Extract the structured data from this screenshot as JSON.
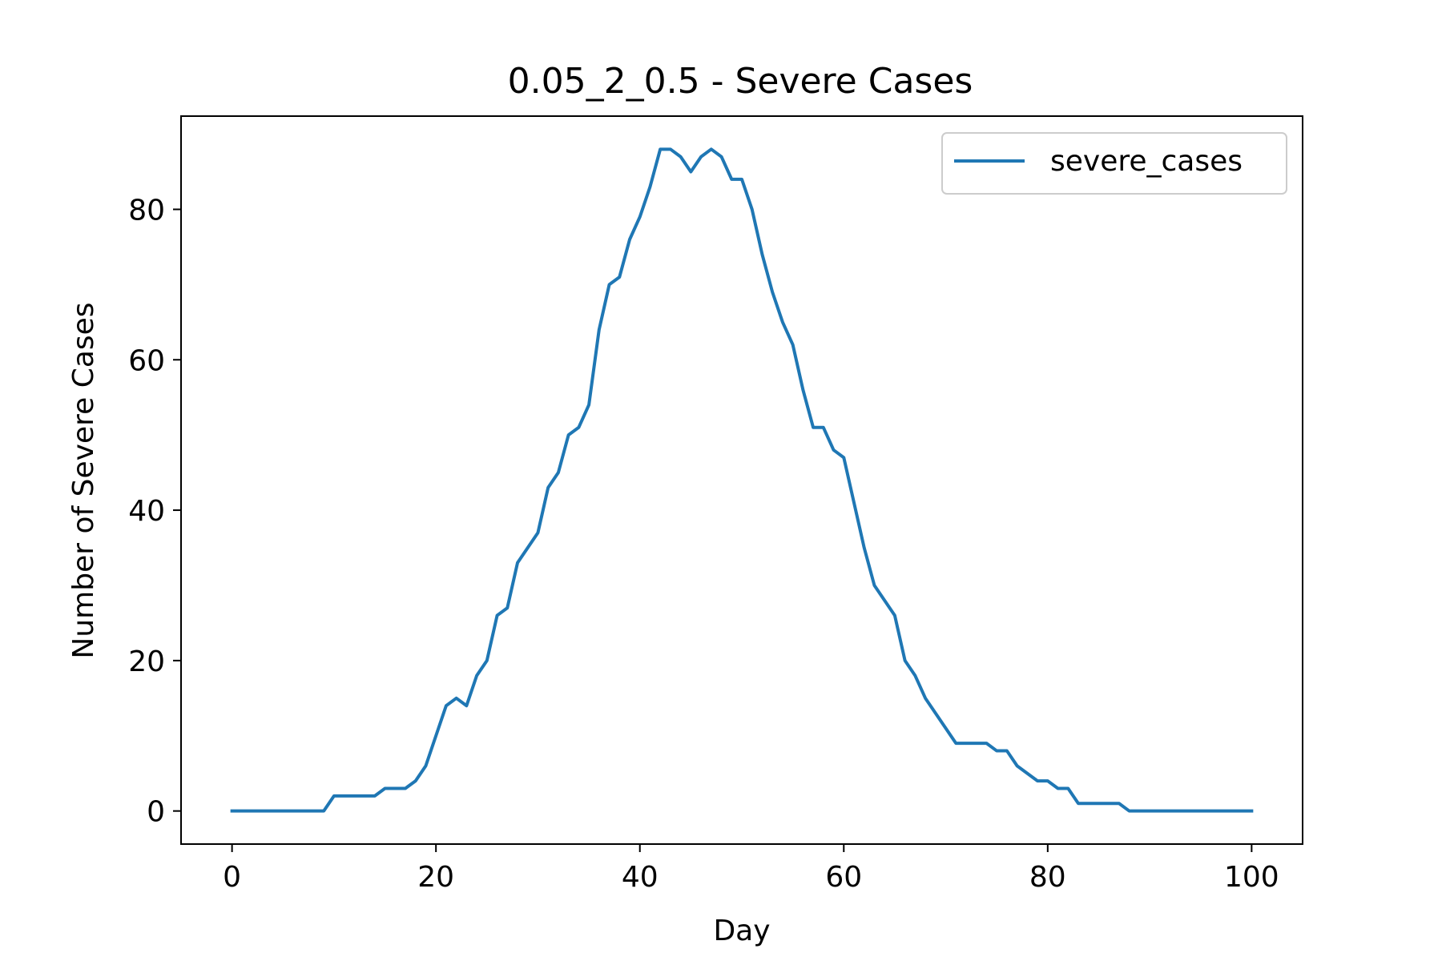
{
  "chart_data": {
    "type": "line",
    "title": "0.05_2_0.5 - Severe Cases",
    "xlabel": "Day",
    "ylabel": "Number of Severe Cases",
    "xlim": [
      -5,
      105
    ],
    "ylim": [
      -4.4,
      92.4
    ],
    "xticks": [
      0,
      20,
      40,
      60,
      80,
      100
    ],
    "yticks": [
      0,
      20,
      40,
      60,
      80
    ],
    "grid": false,
    "legend": {
      "position": "top-right",
      "entries": [
        "severe_cases"
      ]
    },
    "colors": {
      "severe_cases": "#1f77b4"
    },
    "series": [
      {
        "name": "severe_cases",
        "x": [
          0,
          1,
          2,
          3,
          4,
          5,
          6,
          7,
          8,
          9,
          10,
          11,
          12,
          13,
          14,
          15,
          16,
          17,
          18,
          19,
          20,
          21,
          22,
          23,
          24,
          25,
          26,
          27,
          28,
          29,
          30,
          31,
          32,
          33,
          34,
          35,
          36,
          37,
          38,
          39,
          40,
          41,
          42,
          43,
          44,
          45,
          46,
          47,
          48,
          49,
          50,
          51,
          52,
          53,
          54,
          55,
          56,
          57,
          58,
          59,
          60,
          61,
          62,
          63,
          64,
          65,
          66,
          67,
          68,
          69,
          70,
          71,
          72,
          73,
          74,
          75,
          76,
          77,
          78,
          79,
          80,
          81,
          82,
          83,
          84,
          85,
          86,
          87,
          88,
          89,
          90,
          91,
          92,
          93,
          94,
          95,
          96,
          97,
          98,
          99,
          100
        ],
        "y": [
          0,
          0,
          0,
          0,
          0,
          0,
          0,
          0,
          0,
          0,
          2,
          2,
          2,
          2,
          2,
          3,
          3,
          3,
          4,
          6,
          10,
          14,
          15,
          14,
          18,
          20,
          26,
          27,
          33,
          35,
          37,
          43,
          45,
          50,
          51,
          54,
          64,
          70,
          71,
          76,
          79,
          83,
          88,
          88,
          87,
          85,
          87,
          88,
          87,
          84,
          84,
          80,
          74,
          69,
          65,
          62,
          56,
          51,
          51,
          48,
          47,
          41,
          35,
          30,
          28,
          26,
          20,
          18,
          15,
          13,
          11,
          9,
          9,
          9,
          9,
          8,
          8,
          6,
          5,
          4,
          4,
          3,
          3,
          1,
          1,
          1,
          1,
          1,
          0,
          0,
          0,
          0,
          0,
          0,
          0,
          0,
          0,
          0,
          0,
          0,
          0
        ]
      }
    ]
  }
}
